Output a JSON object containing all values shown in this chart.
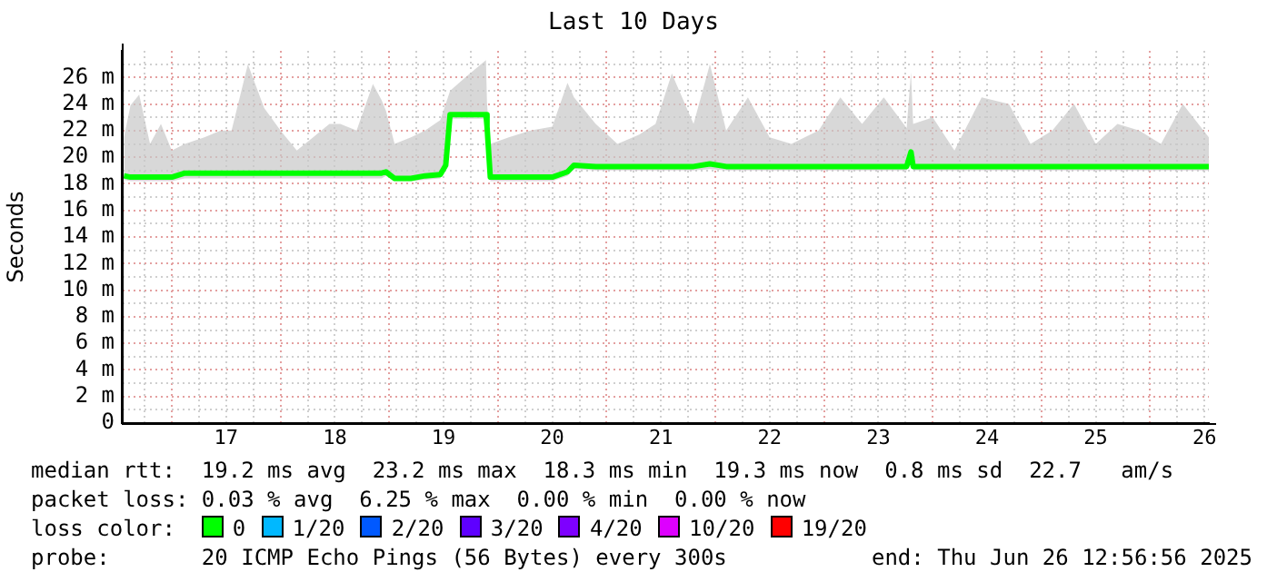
{
  "chart_data": {
    "type": "line",
    "title": "Last 10 Days",
    "ylabel": "Seconds",
    "legend_title": "loss color:",
    "legend": "bottom",
    "grid": true,
    "marker": "none",
    "line_style": "solid",
    "xlim": [
      16.54,
      26.54
    ],
    "ylim": [
      0,
      28
    ],
    "xticks": [
      {
        "value": 16.75,
        "label": null
      },
      {
        "value": 17,
        "label": null
      },
      {
        "value": 17.25,
        "label": null
      },
      {
        "value": 17.5,
        "label": "17"
      },
      {
        "value": 17.75,
        "label": null
      },
      {
        "value": 18,
        "label": null
      },
      {
        "value": 18.25,
        "label": null
      },
      {
        "value": 18.5,
        "label": "18"
      },
      {
        "value": 18.75,
        "label": null
      },
      {
        "value": 19,
        "label": null
      },
      {
        "value": 19.25,
        "label": null
      },
      {
        "value": 19.5,
        "label": "19"
      },
      {
        "value": 19.75,
        "label": null
      },
      {
        "value": 20,
        "label": null
      },
      {
        "value": 20.25,
        "label": null
      },
      {
        "value": 20.5,
        "label": "20"
      },
      {
        "value": 20.75,
        "label": null
      },
      {
        "value": 21,
        "label": null
      },
      {
        "value": 21.25,
        "label": null
      },
      {
        "value": 21.5,
        "label": "21"
      },
      {
        "value": 21.75,
        "label": null
      },
      {
        "value": 22,
        "label": null
      },
      {
        "value": 22.25,
        "label": null
      },
      {
        "value": 22.5,
        "label": "22"
      },
      {
        "value": 22.75,
        "label": null
      },
      {
        "value": 23,
        "label": null
      },
      {
        "value": 23.25,
        "label": null
      },
      {
        "value": 23.5,
        "label": "23"
      },
      {
        "value": 23.75,
        "label": null
      },
      {
        "value": 24,
        "label": null
      },
      {
        "value": 24.25,
        "label": null
      },
      {
        "value": 24.5,
        "label": "24"
      },
      {
        "value": 24.75,
        "label": null
      },
      {
        "value": 25,
        "label": null
      },
      {
        "value": 25.25,
        "label": null
      },
      {
        "value": 25.5,
        "label": "25"
      },
      {
        "value": 25.75,
        "label": null
      },
      {
        "value": 26,
        "label": null
      },
      {
        "value": 26.25,
        "label": null
      },
      {
        "value": 26.5,
        "label": "26"
      }
    ],
    "yticks": [
      0,
      {
        "value": 1,
        "label": null
      },
      {
        "value": 2,
        "label": "2 m"
      },
      {
        "value": 3,
        "label": null
      },
      {
        "value": 4,
        "label": "4 m"
      },
      {
        "value": 5,
        "label": null
      },
      {
        "value": 6,
        "label": "6 m"
      },
      {
        "value": 7,
        "label": null
      },
      {
        "value": 8,
        "label": "8 m"
      },
      {
        "value": 9,
        "label": null
      },
      {
        "value": 10,
        "label": "10 m"
      },
      {
        "value": 11,
        "label": null
      },
      {
        "value": 12,
        "label": "12 m"
      },
      {
        "value": 13,
        "label": null
      },
      {
        "value": 14,
        "label": "14 m"
      },
      {
        "value": 15,
        "label": null
      },
      {
        "value": 16,
        "label": "16 m"
      },
      {
        "value": 17,
        "label": null
      },
      {
        "value": 18,
        "label": "18 m"
      },
      {
        "value": 19,
        "label": null
      },
      {
        "value": 20,
        "label": "20 m"
      },
      {
        "value": 21,
        "label": null
      },
      {
        "value": 22,
        "label": "22 m"
      },
      {
        "value": 23,
        "label": null
      },
      {
        "value": 24,
        "label": "24 m"
      },
      {
        "value": 25,
        "label": null
      },
      {
        "value": 26,
        "label": "26 m"
      },
      {
        "value": 27,
        "label": null
      }
    ],
    "series": [
      {
        "name": "0",
        "color": "#00ff00",
        "x": [
          16.56,
          16.62,
          16.7,
          16.8,
          16.9,
          17.0,
          17.12,
          17.3,
          17.45,
          17.55,
          17.7,
          17.85,
          18.0,
          18.15,
          18.3,
          18.45,
          18.55,
          18.7,
          18.85,
          18.93,
          18.97,
          19.05,
          19.2,
          19.33,
          19.47,
          19.52,
          19.56,
          19.7,
          19.89,
          19.9,
          19.93,
          20.1,
          20.3,
          20.5,
          20.64,
          20.7,
          20.9,
          21.1,
          21.3,
          21.45,
          21.6,
          21.8,
          21.95,
          22.1,
          22.3,
          22.5,
          22.7,
          22.95,
          23.15,
          23.35,
          23.55,
          23.76,
          23.8,
          23.82,
          24.0,
          24.2,
          24.45,
          24.7,
          24.9,
          25.1,
          25.3,
          25.5,
          25.7,
          25.9,
          26.1,
          26.3,
          26.54
        ],
        "values": [
          18.6,
          18.5,
          18.5,
          18.5,
          18.5,
          18.5,
          18.8,
          18.8,
          18.8,
          18.8,
          18.8,
          18.8,
          18.8,
          18.8,
          18.8,
          18.8,
          18.8,
          18.8,
          18.8,
          18.8,
          18.9,
          18.4,
          18.4,
          18.6,
          18.7,
          19.4,
          23.2,
          23.2,
          23.2,
          22.3,
          18.5,
          18.5,
          18.5,
          18.5,
          18.9,
          19.4,
          19.3,
          19.3,
          19.3,
          19.3,
          19.3,
          19.3,
          19.5,
          19.3,
          19.3,
          19.3,
          19.3,
          19.3,
          19.3,
          19.3,
          19.3,
          19.3,
          20.4,
          19.3,
          19.3,
          19.3,
          19.3,
          19.3,
          19.3,
          19.3,
          19.3,
          19.3,
          19.3,
          19.3,
          19.3,
          19.3,
          19.3
        ],
        "lower": [
          18.3,
          18.2,
          18.2,
          18.2,
          18.2,
          18.2,
          18.4,
          18.4,
          18.4,
          18.4,
          18.4,
          18.4,
          18.4,
          18.4,
          18.4,
          18.4,
          18.4,
          18.4,
          18.4,
          18.4,
          18.6,
          18.2,
          18.2,
          18.3,
          18.4,
          19.1,
          22.9,
          22.9,
          22.9,
          22.0,
          18.2,
          18.2,
          18.2,
          18.2,
          18.6,
          19.1,
          19.0,
          19.0,
          19.0,
          19.0,
          19.0,
          19.0,
          19.1,
          19.0,
          19.0,
          19.0,
          19.0,
          19.0,
          19.0,
          19.0,
          19.0,
          19.0,
          19.8,
          19.0,
          19.0,
          19.0,
          19.0,
          19.0,
          19.0,
          19.0,
          19.0,
          19.0,
          19.0,
          19.0,
          19.0,
          19.0,
          19.0
        ],
        "upper": [
          21.5,
          23.9,
          24.7,
          21.0,
          22.5,
          20.5,
          21.0,
          21.5,
          22.0,
          22.0,
          27.0,
          23.7,
          22.0,
          20.5,
          21.5,
          22.5,
          22.5,
          22.0,
          25.5,
          24.3,
          23.5,
          21.0,
          21.5,
          22.0,
          22.8,
          24.0,
          25.0,
          26.0,
          27.3,
          24.0,
          21.0,
          21.5,
          22.0,
          22.3,
          25.6,
          24.5,
          22.5,
          21.0,
          21.7,
          22.5,
          26.3,
          22.5,
          27.0,
          22.0,
          24.5,
          21.5,
          21.0,
          22.0,
          24.5,
          22.5,
          24.5,
          22.2,
          26.4,
          22.5,
          23.0,
          20.5,
          24.5,
          24.0,
          21.0,
          22.0,
          24.0,
          21.0,
          22.5,
          22.0,
          21.0,
          24.0,
          21.5
        ]
      },
      {
        "name": "1/20",
        "color": "#00b8ff"
      },
      {
        "name": "2/20",
        "color": "#0059ff"
      },
      {
        "name": "3/20",
        "color": "#5e00ff"
      },
      {
        "name": "4/20",
        "color": "#7e00ff"
      },
      {
        "name": "10/20",
        "color": "#dd00ff"
      },
      {
        "name": "19/20",
        "color": "#ff0000"
      }
    ],
    "annotations": [
      "median rtt:  19.2 ms avg  23.2 ms max  18.3 ms min  19.3 ms now  0.8 ms sd  22.7   am/s",
      "packet loss: 0.03 % avg  6.25 % max  0.00 % min  0.00 % now",
      "probe:       20 ICMP Echo Pings (56 Bytes) every 300s",
      "end: Thu Jun 26 12:56:56 2025"
    ]
  }
}
